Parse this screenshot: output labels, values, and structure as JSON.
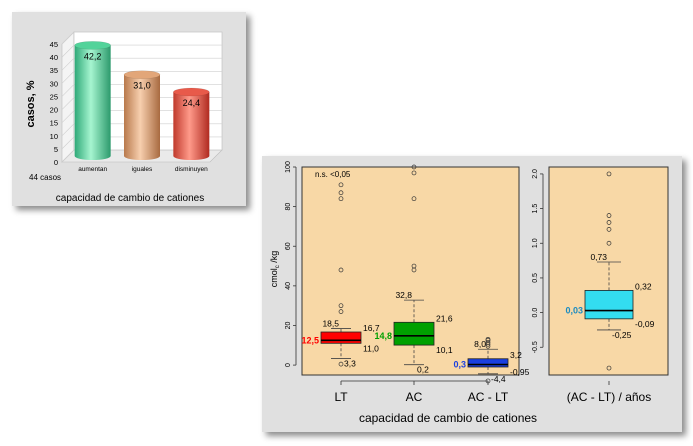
{
  "chart_data": [
    {
      "type": "bar",
      "categories": [
        "aumentan",
        "iguales",
        "disminuyen"
      ],
      "values": [
        42.2,
        31.0,
        24.4
      ],
      "value_labels": [
        "42,2",
        "31,0",
        "24,4"
      ],
      "colors": [
        "#52d39a",
        "#e2a679",
        "#e85a4a"
      ],
      "ylabel": "casos,  %",
      "xlabel": "capacidad de cambio de cationes",
      "ylim": [
        0,
        45
      ],
      "yticks": [
        0,
        5,
        10,
        15,
        20,
        25,
        30,
        35,
        40,
        45
      ],
      "annotation": "44 casos",
      "grid": true
    },
    {
      "type": "boxplot",
      "categories": [
        "LT",
        "AC",
        "AC - LT"
      ],
      "ylabel_main": "cmol",
      "ylabel_sub": "c",
      "ylabel_tail": " /kg",
      "xlabel": "capacidad de cambio de cationes",
      "annotation": "n.s. <0,05",
      "ylim": [
        -5,
        100
      ],
      "yticks": [
        0,
        20,
        40,
        60,
        80,
        100
      ],
      "background": "#f8d8a6",
      "boxes": [
        {
          "name": "LT",
          "color": "#ff0000",
          "whisker_low": 3.3,
          "q1": 11.0,
          "median": 12.5,
          "q3": 16.7,
          "whisker_high": 18.5,
          "outliers": [
            0.5,
            27,
            30,
            48,
            84,
            87,
            91
          ],
          "labels": {
            "median": "12,5",
            "q1": "11,0",
            "q3": "16,7",
            "whisker_high": "18,5",
            "whisker_low": "3,3"
          },
          "median_label_color": "#ff0000"
        },
        {
          "name": "AC",
          "color": "#00a000",
          "whisker_low": 0.2,
          "q1": 10.1,
          "median": 14.8,
          "q3": 21.6,
          "whisker_high": 32.8,
          "outliers": [
            48,
            50,
            84,
            97,
            100
          ],
          "labels": {
            "median": "14,8",
            "q1": "10,1",
            "q3": "21,6",
            "whisker_high": "32,8",
            "whisker_low": "0,2"
          },
          "median_label_color": "#00a000"
        },
        {
          "name": "AC - LT",
          "color": "#1a3fe0",
          "whisker_low": -4.4,
          "q1": -0.95,
          "median": 0.3,
          "q3": 3.2,
          "whisker_high": 8.0,
          "outliers": [
            9.5,
            10.5,
            11.5,
            12.5,
            13,
            -8
          ],
          "labels": {
            "median": "0,3",
            "q1": "-0,95",
            "q3": "3,2",
            "whisker_high": "8,0",
            "whisker_low": "-4,4"
          },
          "median_label_color": "#1a3fe0"
        }
      ]
    },
    {
      "type": "boxplot",
      "categories": [
        "(AC - LT)  / años"
      ],
      "ylim": [
        -0.9,
        2.1
      ],
      "yticks": [
        -0.5,
        0.0,
        0.5,
        1.0,
        1.5,
        2.0
      ],
      "ytick_labels": [
        "-0.5",
        "0.0",
        "0.5",
        "1.0",
        "1.5",
        "2.0"
      ],
      "background": "#f8d8a6",
      "boxes": [
        {
          "name": "(AC - LT)  / años",
          "color": "#33ddf0",
          "whisker_low": -0.25,
          "q1": -0.09,
          "median": 0.03,
          "q3": 0.32,
          "whisker_high": 0.73,
          "outliers": [
            1.0,
            1.2,
            1.3,
            1.4,
            2.0,
            -0.8
          ],
          "labels": {
            "median": "0,03",
            "q1": "-0,09",
            "q3": "0,32",
            "whisker_high": "0,73",
            "whisker_low": "-0,25"
          },
          "median_label_color": "#1a8bc0"
        }
      ]
    }
  ]
}
